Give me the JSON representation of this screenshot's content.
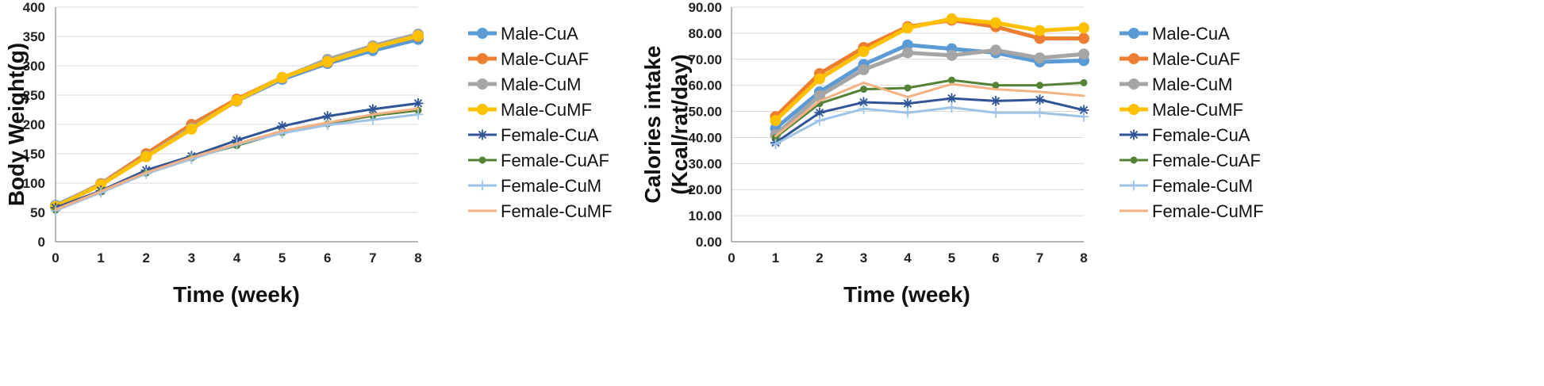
{
  "chart_data": [
    {
      "type": "line",
      "title": "",
      "xlabel": "Time (week)",
      "ylabel": "Body Weight(g)",
      "xlim": [
        0,
        8
      ],
      "ylim": [
        0,
        400
      ],
      "grid": true,
      "legend": "right",
      "x": [
        0,
        1,
        2,
        3,
        4,
        5,
        6,
        7,
        8
      ],
      "x_ticks": [
        "0",
        "1",
        "2",
        "3",
        "4",
        "5",
        "6",
        "7",
        "8"
      ],
      "y_ticks": [
        "0",
        "50",
        "100",
        "150",
        "200",
        "250",
        "300",
        "350",
        "400"
      ],
      "series": [
        {
          "name": "Male-CuA",
          "color": "#5B9BD5",
          "marker": "circle",
          "width": 5,
          "values": [
            62,
            98,
            147,
            195,
            240,
            277,
            304,
            326,
            345
          ]
        },
        {
          "name": "Male-CuAF",
          "color": "#ED7D31",
          "marker": "circle",
          "width": 5,
          "values": [
            60,
            99,
            150,
            200,
            243,
            280,
            306,
            332,
            350
          ]
        },
        {
          "name": "Male-CuM",
          "color": "#A5A5A5",
          "marker": "circle",
          "width": 5,
          "values": [
            61,
            98,
            146,
            194,
            240,
            279,
            311,
            334,
            354
          ]
        },
        {
          "name": "Male-CuMF",
          "color": "#FFC000",
          "marker": "circle",
          "width": 5,
          "values": [
            60,
            97,
            145,
            192,
            241,
            280,
            307,
            331,
            351
          ]
        },
        {
          "name": "Female-CuA",
          "color": "#2F5597",
          "marker": "star",
          "width": 3,
          "values": [
            58,
            87,
            122,
            146,
            173,
            197,
            214,
            226,
            236
          ]
        },
        {
          "name": "Female-CuAF",
          "color": "#548235",
          "marker": "dot",
          "width": 3,
          "values": [
            54,
            85,
            117,
            143,
            164,
            186,
            201,
            215,
            224
          ]
        },
        {
          "name": "Female-CuM",
          "color": "#9DC3E6",
          "marker": "plus",
          "width": 3,
          "values": [
            53,
            84,
            116,
            141,
            166,
            185,
            199,
            208,
            217
          ]
        },
        {
          "name": "Female-CuMF",
          "color": "#F4B183",
          "marker": "none",
          "width": 3,
          "values": [
            55,
            86,
            118,
            144,
            167,
            189,
            203,
            217,
            227
          ]
        }
      ]
    },
    {
      "type": "line",
      "title": "",
      "xlabel": "Time (week)",
      "ylabel": "Calories intake",
      "ylabel2": "(Kcal/rat/day)",
      "xlim": [
        0,
        8
      ],
      "ylim": [
        0,
        90
      ],
      "grid": true,
      "legend": "right",
      "x": [
        1,
        2,
        3,
        4,
        5,
        6,
        7,
        8
      ],
      "x_ticks": [
        "0",
        "1",
        "2",
        "3",
        "4",
        "5",
        "6",
        "7",
        "8"
      ],
      "y_ticks": [
        "0.00",
        "10.00",
        "20.00",
        "30.00",
        "40.00",
        "50.00",
        "60.00",
        "70.00",
        "80.00",
        "90.00"
      ],
      "series": [
        {
          "name": "Male-CuA",
          "color": "#5B9BD5",
          "marker": "circle",
          "width": 5,
          "values": [
            43.5,
            57.5,
            68.0,
            75.5,
            74.0,
            72.5,
            69.0,
            69.5
          ]
        },
        {
          "name": "Male-CuAF",
          "color": "#ED7D31",
          "marker": "circle",
          "width": 5,
          "values": [
            48.0,
            64.5,
            74.5,
            82.5,
            85.0,
            82.5,
            78.0,
            78.0
          ]
        },
        {
          "name": "Male-CuM",
          "color": "#A5A5A5",
          "marker": "circle",
          "width": 5,
          "values": [
            41.0,
            56.0,
            66.0,
            72.5,
            71.5,
            73.5,
            70.5,
            72.0
          ]
        },
        {
          "name": "Male-CuMF",
          "color": "#FFC000",
          "marker": "circle",
          "width": 5,
          "values": [
            46.5,
            62.5,
            73.0,
            82.0,
            85.5,
            84.0,
            81.0,
            82.0
          ]
        },
        {
          "name": "Female-CuA",
          "color": "#2F5597",
          "marker": "star",
          "width": 3,
          "values": [
            38.0,
            49.5,
            53.5,
            53.0,
            55.0,
            54.0,
            54.5,
            50.5
          ]
        },
        {
          "name": "Female-CuAF",
          "color": "#548235",
          "marker": "dot",
          "width": 3,
          "values": [
            40.0,
            53.0,
            58.5,
            59.0,
            62.0,
            60.0,
            60.0,
            61.0
          ]
        },
        {
          "name": "Female-CuM",
          "color": "#9DC3E6",
          "marker": "plus",
          "width": 3,
          "values": [
            37.5,
            46.5,
            51.0,
            49.5,
            51.5,
            49.5,
            49.5,
            48.0
          ]
        },
        {
          "name": "Female-CuMF",
          "color": "#F4B183",
          "marker": "none",
          "width": 3,
          "values": [
            40.5,
            54.0,
            61.0,
            55.5,
            60.5,
            58.5,
            57.5,
            56.0
          ]
        }
      ]
    }
  ]
}
